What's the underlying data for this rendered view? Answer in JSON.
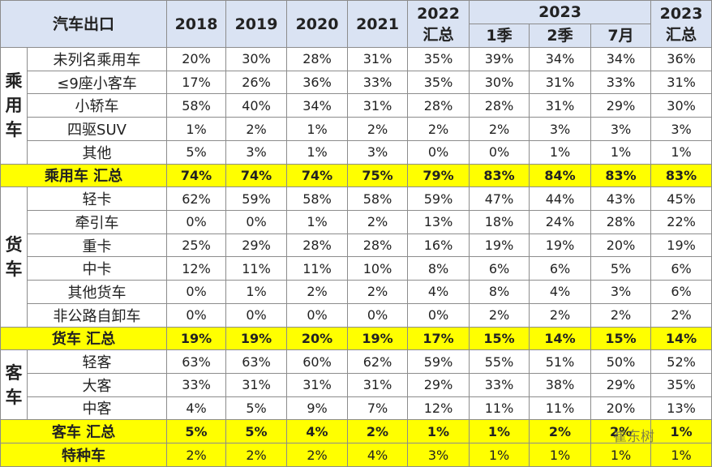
{
  "header": {
    "corner": "汽车出口",
    "years": [
      "2018",
      "2019",
      "2020",
      "2021"
    ],
    "col2022": [
      "2022",
      "汇总"
    ],
    "group2023": "2023",
    "sub2023": [
      "1季",
      "2季",
      "7月"
    ],
    "col2023": [
      "2023",
      "汇总"
    ]
  },
  "sections": [
    {
      "label": "乘用车",
      "rows": [
        {
          "name": "未列名乘用车",
          "values": [
            "20%",
            "30%",
            "28%",
            "31%",
            "35%",
            "39%",
            "34%",
            "34%",
            "36%"
          ]
        },
        {
          "name": "≤9座小客车",
          "values": [
            "17%",
            "26%",
            "36%",
            "33%",
            "35%",
            "30%",
            "31%",
            "33%",
            "31%"
          ]
        },
        {
          "name": "小轿车",
          "values": [
            "58%",
            "40%",
            "34%",
            "31%",
            "28%",
            "28%",
            "31%",
            "29%",
            "30%"
          ]
        },
        {
          "name": "四驱SUV",
          "values": [
            "1%",
            "2%",
            "1%",
            "2%",
            "2%",
            "2%",
            "3%",
            "3%",
            "3%"
          ]
        },
        {
          "name": "其他",
          "values": [
            "5%",
            "3%",
            "1%",
            "3%",
            "0%",
            "0%",
            "1%",
            "1%",
            "1%"
          ]
        }
      ],
      "total": {
        "name": "乘用车 汇总",
        "values": [
          "74%",
          "74%",
          "74%",
          "75%",
          "79%",
          "83%",
          "84%",
          "83%",
          "83%"
        ]
      }
    },
    {
      "label": "货车",
      "rows": [
        {
          "name": "轻卡",
          "values": [
            "62%",
            "59%",
            "58%",
            "58%",
            "59%",
            "47%",
            "44%",
            "43%",
            "45%"
          ]
        },
        {
          "name": "牵引车",
          "values": [
            "0%",
            "0%",
            "1%",
            "2%",
            "13%",
            "18%",
            "24%",
            "28%",
            "22%"
          ]
        },
        {
          "name": "重卡",
          "values": [
            "25%",
            "29%",
            "28%",
            "28%",
            "16%",
            "19%",
            "19%",
            "20%",
            "19%"
          ]
        },
        {
          "name": "中卡",
          "values": [
            "12%",
            "11%",
            "11%",
            "10%",
            "8%",
            "6%",
            "6%",
            "5%",
            "6%"
          ]
        },
        {
          "name": "其他货车",
          "values": [
            "0%",
            "1%",
            "2%",
            "2%",
            "4%",
            "8%",
            "4%",
            "3%",
            "6%"
          ]
        },
        {
          "name": "非公路自卸车",
          "values": [
            "0%",
            "0%",
            "0%",
            "0%",
            "0%",
            "2%",
            "2%",
            "2%",
            "2%"
          ]
        }
      ],
      "total": {
        "name": "货车 汇总",
        "values": [
          "19%",
          "19%",
          "20%",
          "19%",
          "17%",
          "15%",
          "14%",
          "15%",
          "14%"
        ]
      }
    },
    {
      "label": "客车",
      "rows": [
        {
          "name": "轻客",
          "values": [
            "63%",
            "63%",
            "60%",
            "62%",
            "59%",
            "55%",
            "51%",
            "50%",
            "52%"
          ]
        },
        {
          "name": "大客",
          "values": [
            "33%",
            "31%",
            "31%",
            "31%",
            "29%",
            "33%",
            "38%",
            "29%",
            "35%"
          ]
        },
        {
          "name": "中客",
          "values": [
            "4%",
            "5%",
            "9%",
            "7%",
            "12%",
            "11%",
            "11%",
            "20%",
            "13%"
          ]
        }
      ],
      "total": {
        "name": "客车 汇总",
        "values": [
          "5%",
          "5%",
          "4%",
          "2%",
          "1%",
          "1%",
          "2%",
          "2%",
          "1%"
        ]
      }
    }
  ],
  "special": {
    "name": "特种车",
    "values": [
      "2%",
      "2%",
      "2%",
      "4%",
      "3%",
      "1%",
      "1%",
      "1%",
      "1%"
    ]
  },
  "watermark": "崔东树"
}
